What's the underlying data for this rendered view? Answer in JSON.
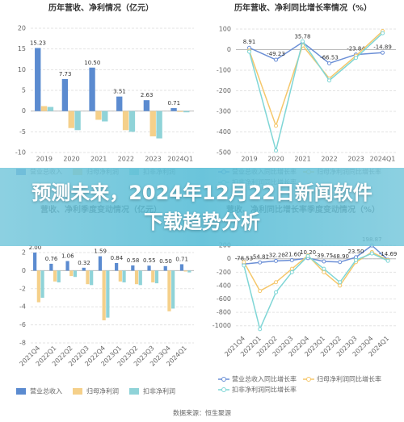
{
  "chart_data": [
    {
      "type": "bar",
      "title": "历年营收、净利情况（亿元）",
      "categories": [
        "2019",
        "2020",
        "2021",
        "2022",
        "2023",
        "2024Q1"
      ],
      "series": [
        {
          "name": "营业总收入",
          "color": "#5b8bd0",
          "values": [
            15.23,
            7.73,
            10.5,
            3.51,
            2.63,
            0.71
          ],
          "value_labels": [
            "15.23",
            "7.73",
            "10.50",
            "3.51",
            "2.63",
            "0.71"
          ]
        },
        {
          "name": "归母净利润",
          "color": "#f5d08a",
          "values": [
            1.2,
            -4.1,
            -2.1,
            -4.6,
            -6.1,
            -0.2
          ]
        },
        {
          "name": "扣非净利润",
          "color": "#8fd3d8",
          "values": [
            1.0,
            -4.6,
            -2.5,
            -5.0,
            -6.6,
            -0.3
          ]
        }
      ],
      "ylim": [
        -10,
        20
      ],
      "yticks": [
        20,
        15,
        10,
        5,
        0,
        -5,
        -10
      ],
      "grid": true
    },
    {
      "type": "line",
      "title": "历年营收、净利同比增长率情况（%）",
      "categories": [
        "2019",
        "2020",
        "2021",
        "2022",
        "2023",
        "2024Q1"
      ],
      "series": [
        {
          "name": "营业总收入同比增长率",
          "color": "#6b8fd6",
          "values": [
            8.91,
            -49.23,
            35.78,
            -66.53,
            -23.84,
            -14.89
          ],
          "value_labels": [
            "8.91",
            "-49.23",
            "35.78",
            "-66.53",
            "-23.84",
            "-14.89"
          ]
        },
        {
          "name": "归母净利润同比增长率",
          "color": "#f5c76b",
          "values": [
            -5,
            -370,
            20,
            -140,
            -30,
            90
          ]
        },
        {
          "name": "扣非净利润同比增长率",
          "color": "#7fd6d6",
          "values": [
            -10,
            -490,
            40,
            -150,
            -40,
            80
          ]
        }
      ],
      "ylim": [
        -500,
        100
      ],
      "yticks": [
        100,
        0,
        -100,
        -200,
        -300,
        -400,
        -500
      ],
      "grid": true
    },
    {
      "type": "bar",
      "title": "营收、净利季度变动情况（亿元）",
      "categories": [
        "2021Q4",
        "2022Q1",
        "2022Q2",
        "2022Q3",
        "2022Q4",
        "2023Q1",
        "2023Q2",
        "2023Q3",
        "2023Q4",
        "2024Q1"
      ],
      "series": [
        {
          "name": "营业总收入",
          "color": "#5b8bd0",
          "values": [
            2.0,
            0.76,
            1.06,
            0.32,
            1.59,
            0.84,
            0.58,
            0.55,
            0.5,
            0.71
          ],
          "value_labels": [
            "2.00",
            "0.76",
            "1.06",
            "0.32",
            "1.59",
            "0.84",
            "0.58",
            "0.55",
            "0.50",
            "0.71"
          ]
        },
        {
          "name": "归母净利润",
          "color": "#f5d08a",
          "values": [
            -3.5,
            -1.2,
            -0.6,
            -1.5,
            -5.5,
            -1.2,
            -1.5,
            -1.3,
            -4.5,
            -0.1
          ]
        },
        {
          "name": "扣非净利润",
          "color": "#8fd3d8",
          "values": [
            -3.0,
            -1.3,
            -0.7,
            -1.6,
            -5.2,
            -1.3,
            -1.6,
            -1.4,
            -4.2,
            -0.2
          ]
        }
      ],
      "ylim": [
        -8,
        2
      ],
      "yticks": [
        2,
        0,
        -2,
        -4,
        -6,
        -8
      ],
      "grid": true
    },
    {
      "type": "line",
      "title": "营收、净利同比增长率季度变动情况（%）",
      "categories": [
        "2021Q4",
        "2022Q1",
        "2022Q2",
        "2022Q3",
        "2022Q4",
        "2023Q1",
        "2023Q2",
        "2023Q3",
        "2023Q4",
        "2024Q1"
      ],
      "series": [
        {
          "name": "营业总收入同比增长率",
          "color": "#6b8fd6",
          "values": [
            -78.53,
            -54.81,
            -32.2,
            -21.6,
            10.2,
            -39.75,
            -48.9,
            23.5,
            198.87,
            -14.69
          ],
          "value_labels": [
            "-78.53",
            "-54.81",
            "-32.20",
            "-21.60",
            "10.20",
            "-39.75",
            "-48.90",
            "23.50",
            "198.87",
            "-14.69"
          ]
        },
        {
          "name": "归母净利润同比增长率",
          "color": "#f5c76b",
          "values": [
            -50,
            -480,
            -350,
            -150,
            50,
            -200,
            -400,
            -50,
            100,
            -20
          ]
        },
        {
          "name": "扣非净利润同比增长率",
          "color": "#7fd6d6",
          "values": [
            -100,
            -1050,
            -500,
            -200,
            40,
            -150,
            -350,
            -20,
            80,
            -30
          ]
        }
      ],
      "ylim": [
        -1100,
        250
      ],
      "yticks": [
        200,
        0,
        -200,
        -400,
        -600,
        -800,
        -1000
      ],
      "grid": true
    }
  ],
  "banner": {
    "title": "预测未来，2024年12月22日新闻软件下载趋势分析"
  },
  "footer": "数据来源：恒生聚源"
}
